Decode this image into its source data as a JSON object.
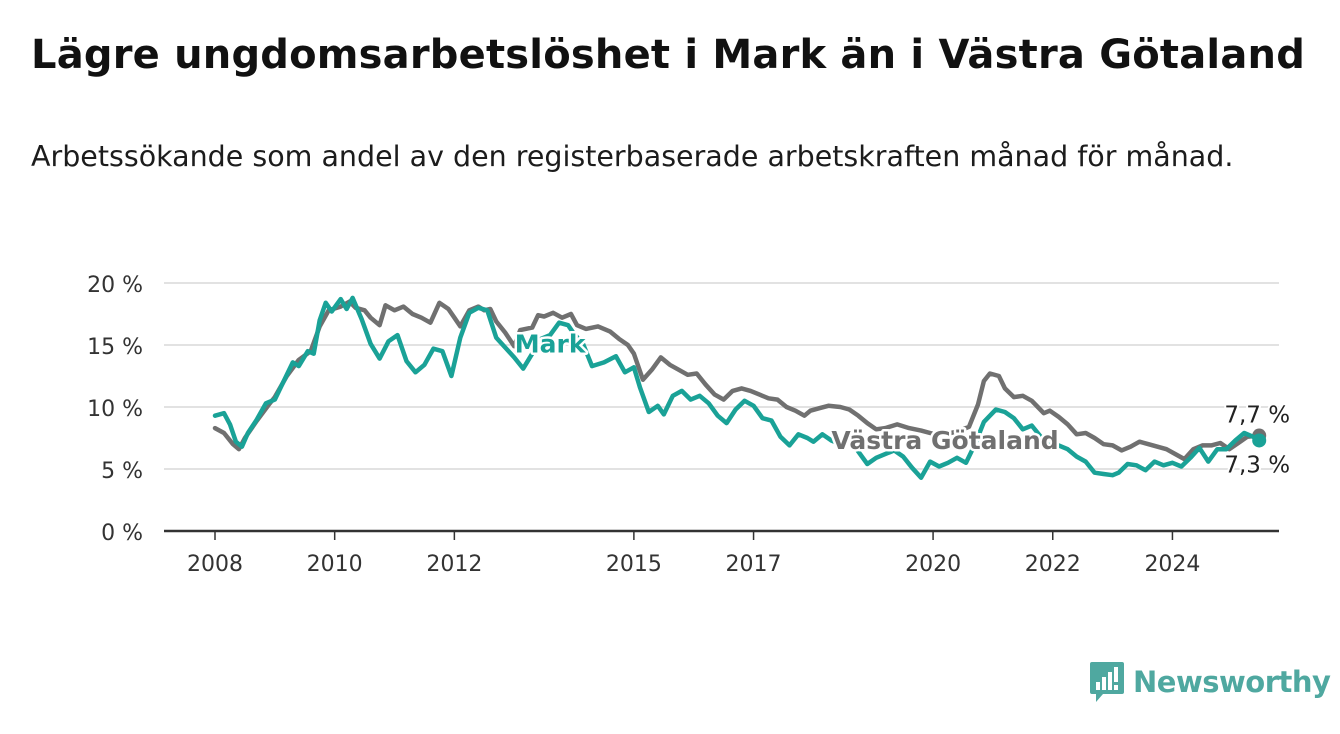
{
  "header": {
    "title": "Lägre ungdomsarbetslöshet i Mark än i Västra Götaland",
    "subtitle": "Arbetssökande som andel av den registerbaserade arbetskraften månad för månad."
  },
  "logo": {
    "text": "Newsworthy",
    "icon": "bar-chart-badge-icon",
    "color": "#4fa8a0"
  },
  "chart_data": {
    "type": "line",
    "title": "Lägre ungdomsarbetslöshet i Mark än i Västra Götaland",
    "subtitle": "Arbetssökande som andel av den registerbaserade arbetskraften månad för månad.",
    "xlabel": "",
    "ylabel": "",
    "xlim": [
      2007.8,
      2025.7
    ],
    "ylim": [
      0,
      20
    ],
    "x_ticks": [
      2008,
      2010,
      2012,
      2015,
      2017,
      2020,
      2022,
      2024
    ],
    "x_tick_labels": [
      "2008",
      "2010",
      "2012",
      "2015",
      "2017",
      "2020",
      "2022",
      "2024"
    ],
    "y_ticks": [
      0,
      5,
      10,
      15,
      20
    ],
    "y_tick_labels": [
      "0 %",
      "5 %",
      "10 %",
      "15 %",
      "20 %"
    ],
    "grid": true,
    "legend": "inline labels",
    "series": [
      {
        "name": "Västra Götaland",
        "color": "#707070",
        "label": "Västra Götaland",
        "end_label": "7,7 %",
        "points": [
          [
            2008.0,
            8.3
          ],
          [
            2008.15,
            7.9
          ],
          [
            2008.3,
            7.0
          ],
          [
            2008.4,
            6.6
          ],
          [
            2008.5,
            7.5
          ],
          [
            2008.7,
            8.9
          ],
          [
            2008.9,
            10.2
          ],
          [
            2009.0,
            10.8
          ],
          [
            2009.2,
            12.5
          ],
          [
            2009.4,
            13.8
          ],
          [
            2009.6,
            14.5
          ],
          [
            2009.75,
            16.5
          ],
          [
            2009.9,
            17.8
          ],
          [
            2010.1,
            18.1
          ],
          [
            2010.25,
            18.5
          ],
          [
            2010.35,
            18.0
          ],
          [
            2010.5,
            17.8
          ],
          [
            2010.6,
            17.2
          ],
          [
            2010.75,
            16.6
          ],
          [
            2010.85,
            18.2
          ],
          [
            2011.0,
            17.8
          ],
          [
            2011.15,
            18.1
          ],
          [
            2011.3,
            17.5
          ],
          [
            2011.45,
            17.2
          ],
          [
            2011.6,
            16.8
          ],
          [
            2011.75,
            18.4
          ],
          [
            2011.9,
            17.9
          ],
          [
            2012.0,
            17.2
          ],
          [
            2012.1,
            16.5
          ],
          [
            2012.25,
            17.8
          ],
          [
            2012.4,
            18.1
          ],
          [
            2012.5,
            17.8
          ],
          [
            2012.6,
            17.9
          ],
          [
            2012.7,
            16.9
          ],
          [
            2012.85,
            16.0
          ],
          [
            2013.0,
            14.9
          ],
          [
            2013.1,
            16.2
          ],
          [
            2013.3,
            16.4
          ],
          [
            2013.4,
            17.4
          ],
          [
            2013.5,
            17.3
          ],
          [
            2013.65,
            17.6
          ],
          [
            2013.8,
            17.2
          ],
          [
            2013.95,
            17.5
          ],
          [
            2014.05,
            16.6
          ],
          [
            2014.2,
            16.3
          ],
          [
            2014.4,
            16.5
          ],
          [
            2014.6,
            16.1
          ],
          [
            2014.75,
            15.5
          ],
          [
            2014.9,
            15.0
          ],
          [
            2015.0,
            14.3
          ],
          [
            2015.15,
            12.2
          ],
          [
            2015.3,
            13.0
          ],
          [
            2015.45,
            14.0
          ],
          [
            2015.6,
            13.4
          ],
          [
            2015.75,
            13.0
          ],
          [
            2015.9,
            12.6
          ],
          [
            2016.05,
            12.7
          ],
          [
            2016.2,
            11.8
          ],
          [
            2016.35,
            11.0
          ],
          [
            2016.5,
            10.6
          ],
          [
            2016.65,
            11.3
          ],
          [
            2016.8,
            11.5
          ],
          [
            2016.95,
            11.3
          ],
          [
            2017.1,
            11.0
          ],
          [
            2017.25,
            10.7
          ],
          [
            2017.4,
            10.6
          ],
          [
            2017.55,
            10.0
          ],
          [
            2017.7,
            9.7
          ],
          [
            2017.85,
            9.3
          ],
          [
            2017.95,
            9.7
          ],
          [
            2018.1,
            9.9
          ],
          [
            2018.25,
            10.1
          ],
          [
            2018.45,
            10.0
          ],
          [
            2018.6,
            9.8
          ],
          [
            2018.75,
            9.3
          ],
          [
            2018.9,
            8.7
          ],
          [
            2019.05,
            8.2
          ],
          [
            2019.2,
            8.3
          ],
          [
            2019.4,
            8.6
          ],
          [
            2019.6,
            8.3
          ],
          [
            2019.8,
            8.1
          ],
          [
            2019.95,
            7.9
          ],
          [
            2020.1,
            7.7
          ],
          [
            2020.3,
            7.9
          ],
          [
            2020.45,
            8.1
          ],
          [
            2020.6,
            8.4
          ],
          [
            2020.75,
            10.2
          ],
          [
            2020.85,
            12.1
          ],
          [
            2020.95,
            12.7
          ],
          [
            2021.1,
            12.5
          ],
          [
            2021.2,
            11.5
          ],
          [
            2021.35,
            10.8
          ],
          [
            2021.5,
            10.9
          ],
          [
            2021.65,
            10.5
          ],
          [
            2021.75,
            10.0
          ],
          [
            2021.85,
            9.5
          ],
          [
            2021.95,
            9.7
          ],
          [
            2022.1,
            9.2
          ],
          [
            2022.25,
            8.6
          ],
          [
            2022.4,
            7.8
          ],
          [
            2022.55,
            7.9
          ],
          [
            2022.7,
            7.5
          ],
          [
            2022.85,
            7.0
          ],
          [
            2023.0,
            6.9
          ],
          [
            2023.15,
            6.5
          ],
          [
            2023.3,
            6.8
          ],
          [
            2023.45,
            7.2
          ],
          [
            2023.6,
            7.0
          ],
          [
            2023.75,
            6.8
          ],
          [
            2023.9,
            6.6
          ],
          [
            2024.05,
            6.2
          ],
          [
            2024.2,
            5.8
          ],
          [
            2024.35,
            6.6
          ],
          [
            2024.5,
            6.9
          ],
          [
            2024.65,
            6.9
          ],
          [
            2024.8,
            7.1
          ],
          [
            2024.95,
            6.6
          ],
          [
            2025.1,
            7.1
          ],
          [
            2025.25,
            7.6
          ],
          [
            2025.45,
            7.7
          ]
        ]
      },
      {
        "name": "Mark",
        "color": "#1aa297",
        "label": "Mark",
        "end_label": "7,3 %",
        "points": [
          [
            2008.0,
            9.3
          ],
          [
            2008.15,
            9.5
          ],
          [
            2008.25,
            8.6
          ],
          [
            2008.35,
            7.2
          ],
          [
            2008.45,
            6.8
          ],
          [
            2008.55,
            7.9
          ],
          [
            2008.7,
            9.0
          ],
          [
            2008.85,
            10.3
          ],
          [
            2009.0,
            10.6
          ],
          [
            2009.15,
            12.1
          ],
          [
            2009.3,
            13.6
          ],
          [
            2009.4,
            13.3
          ],
          [
            2009.55,
            14.5
          ],
          [
            2009.65,
            14.3
          ],
          [
            2009.75,
            17.0
          ],
          [
            2009.85,
            18.4
          ],
          [
            2009.95,
            17.7
          ],
          [
            2010.1,
            18.7
          ],
          [
            2010.2,
            17.9
          ],
          [
            2010.3,
            18.8
          ],
          [
            2010.45,
            17.1
          ],
          [
            2010.6,
            15.1
          ],
          [
            2010.75,
            13.9
          ],
          [
            2010.9,
            15.3
          ],
          [
            2011.05,
            15.8
          ],
          [
            2011.2,
            13.7
          ],
          [
            2011.35,
            12.8
          ],
          [
            2011.5,
            13.4
          ],
          [
            2011.65,
            14.7
          ],
          [
            2011.8,
            14.5
          ],
          [
            2011.95,
            12.5
          ],
          [
            2012.1,
            15.6
          ],
          [
            2012.25,
            17.6
          ],
          [
            2012.4,
            18.0
          ],
          [
            2012.55,
            17.8
          ],
          [
            2012.7,
            15.6
          ],
          [
            2012.85,
            14.8
          ],
          [
            2013.0,
            14.0
          ],
          [
            2013.15,
            13.1
          ],
          [
            2013.3,
            14.3
          ],
          [
            2013.45,
            15.5
          ],
          [
            2013.6,
            15.8
          ],
          [
            2013.75,
            16.8
          ],
          [
            2013.9,
            16.6
          ],
          [
            2014.0,
            15.9
          ],
          [
            2014.15,
            15.1
          ],
          [
            2014.3,
            13.3
          ],
          [
            2014.5,
            13.6
          ],
          [
            2014.7,
            14.1
          ],
          [
            2014.85,
            12.8
          ],
          [
            2015.0,
            13.2
          ],
          [
            2015.1,
            11.6
          ],
          [
            2015.25,
            9.6
          ],
          [
            2015.4,
            10.1
          ],
          [
            2015.5,
            9.4
          ],
          [
            2015.65,
            10.9
          ],
          [
            2015.8,
            11.3
          ],
          [
            2015.95,
            10.6
          ],
          [
            2016.1,
            10.9
          ],
          [
            2016.25,
            10.3
          ],
          [
            2016.4,
            9.3
          ],
          [
            2016.55,
            8.7
          ],
          [
            2016.7,
            9.8
          ],
          [
            2016.85,
            10.5
          ],
          [
            2017.0,
            10.1
          ],
          [
            2017.15,
            9.1
          ],
          [
            2017.3,
            8.9
          ],
          [
            2017.45,
            7.6
          ],
          [
            2017.6,
            6.9
          ],
          [
            2017.75,
            7.8
          ],
          [
            2017.9,
            7.5
          ],
          [
            2018.0,
            7.2
          ],
          [
            2018.15,
            7.8
          ],
          [
            2018.3,
            7.3
          ],
          [
            2018.45,
            7.0
          ],
          [
            2018.6,
            7.6
          ],
          [
            2018.75,
            6.4
          ],
          [
            2018.9,
            5.4
          ],
          [
            2019.05,
            5.9
          ],
          [
            2019.2,
            6.2
          ],
          [
            2019.35,
            6.5
          ],
          [
            2019.5,
            6.0
          ],
          [
            2019.65,
            5.1
          ],
          [
            2019.8,
            4.3
          ],
          [
            2019.95,
            5.6
          ],
          [
            2020.1,
            5.2
          ],
          [
            2020.25,
            5.5
          ],
          [
            2020.4,
            5.9
          ],
          [
            2020.55,
            5.5
          ],
          [
            2020.7,
            7.0
          ],
          [
            2020.85,
            8.8
          ],
          [
            2020.95,
            9.3
          ],
          [
            2021.05,
            9.8
          ],
          [
            2021.2,
            9.6
          ],
          [
            2021.35,
            9.1
          ],
          [
            2021.5,
            8.2
          ],
          [
            2021.65,
            8.5
          ],
          [
            2021.8,
            7.6
          ],
          [
            2021.95,
            6.8
          ],
          [
            2022.1,
            6.9
          ],
          [
            2022.25,
            6.6
          ],
          [
            2022.4,
            6.0
          ],
          [
            2022.55,
            5.6
          ],
          [
            2022.7,
            4.7
          ],
          [
            2022.85,
            4.6
          ],
          [
            2023.0,
            4.5
          ],
          [
            2023.1,
            4.7
          ],
          [
            2023.25,
            5.4
          ],
          [
            2023.4,
            5.3
          ],
          [
            2023.55,
            4.9
          ],
          [
            2023.7,
            5.6
          ],
          [
            2023.85,
            5.3
          ],
          [
            2024.0,
            5.5
          ],
          [
            2024.15,
            5.2
          ],
          [
            2024.3,
            5.9
          ],
          [
            2024.45,
            6.7
          ],
          [
            2024.6,
            5.6
          ],
          [
            2024.75,
            6.6
          ],
          [
            2024.9,
            6.6
          ],
          [
            2025.05,
            7.3
          ],
          [
            2025.2,
            7.9
          ],
          [
            2025.35,
            7.6
          ],
          [
            2025.45,
            7.3
          ]
        ]
      }
    ],
    "annotations": [
      {
        "text": "Mark",
        "series": "Mark",
        "x": 2013.6,
        "y": 14.4
      },
      {
        "text": "Västra Götaland",
        "series": "Västra Götaland",
        "x": 2020.2,
        "y": 6.6
      }
    ]
  }
}
